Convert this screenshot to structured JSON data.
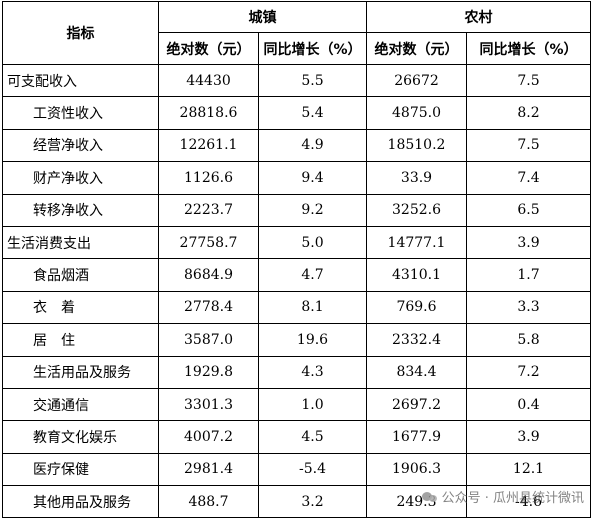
{
  "table": {
    "header": {
      "indicator": "指标",
      "urban": "城镇",
      "rural": "农村",
      "abs": "绝对数（元）",
      "yoy": "同比增长（%）"
    },
    "rows": [
      {
        "name": "可支配收入",
        "level": 0,
        "u_abs": "44430",
        "u_yoy": "5.5",
        "r_abs": "26672",
        "r_yoy": "7.5"
      },
      {
        "name": "工资性收入",
        "level": 1,
        "u_abs": "28818.6",
        "u_yoy": "5.4",
        "r_abs": "4875.0",
        "r_yoy": "8.2"
      },
      {
        "name": "经营净收入",
        "level": 1,
        "u_abs": "12261.1",
        "u_yoy": "4.9",
        "r_abs": "18510.2",
        "r_yoy": "7.5"
      },
      {
        "name": "财产净收入",
        "level": 1,
        "u_abs": "1126.6",
        "u_yoy": "9.4",
        "r_abs": "33.9",
        "r_yoy": "7.4"
      },
      {
        "name": "转移净收入",
        "level": 1,
        "u_abs": "2223.7",
        "u_yoy": "9.2",
        "r_abs": "3252.6",
        "r_yoy": "6.5"
      },
      {
        "name": "生活消费支出",
        "level": 0,
        "u_abs": "27758.7",
        "u_yoy": "5.0",
        "r_abs": "14777.1",
        "r_yoy": "3.9"
      },
      {
        "name": "食品烟酒",
        "level": 1,
        "u_abs": "8684.9",
        "u_yoy": "4.7",
        "r_abs": "4310.1",
        "r_yoy": "1.7"
      },
      {
        "name": "衣　着",
        "level": 1,
        "u_abs": "2778.4",
        "u_yoy": "8.1",
        "r_abs": "769.6",
        "r_yoy": "3.3"
      },
      {
        "name": "居　住",
        "level": 1,
        "u_abs": "3587.0",
        "u_yoy": "19.6",
        "r_abs": "2332.4",
        "r_yoy": "5.8"
      },
      {
        "name": "生活用品及服务",
        "level": 1,
        "u_abs": "1929.8",
        "u_yoy": "4.3",
        "r_abs": "834.4",
        "r_yoy": "7.2"
      },
      {
        "name": "交通通信",
        "level": 1,
        "u_abs": "3301.3",
        "u_yoy": "1.0",
        "r_abs": "2697.2",
        "r_yoy": "0.4"
      },
      {
        "name": "教育文化娱乐",
        "level": 1,
        "u_abs": "4007.2",
        "u_yoy": "4.5",
        "r_abs": "1677.9",
        "r_yoy": "3.9"
      },
      {
        "name": "医疗保健",
        "level": 1,
        "u_abs": "2981.4",
        "u_yoy": "-5.4",
        "r_abs": "1906.3",
        "r_yoy": "12.1"
      },
      {
        "name": "其他用品及服务",
        "level": 1,
        "u_abs": "488.7",
        "u_yoy": "3.2",
        "r_abs": "249.3",
        "r_yoy": "-4.6"
      }
    ]
  },
  "watermark": {
    "icon": "wechat-icon",
    "text": "公众号 · 瓜州县统计微讯"
  }
}
